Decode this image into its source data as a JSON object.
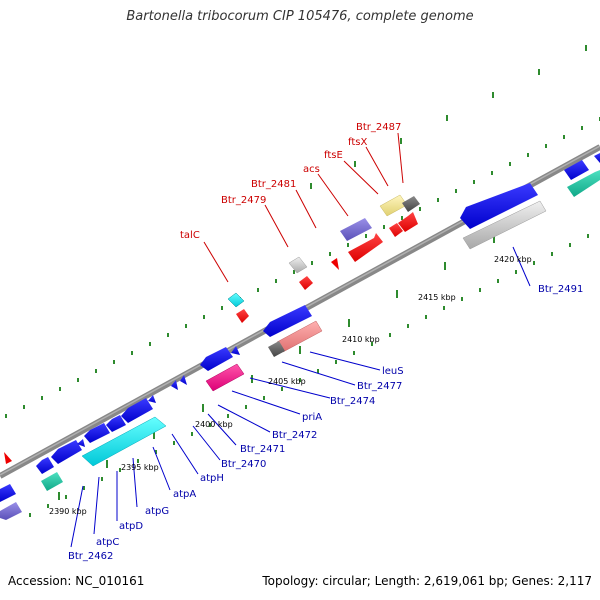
{
  "title": "Bartonella tribocorum CIP 105476, complete genome",
  "footer": {
    "accession": "Accession: NC_010161",
    "info": "Topology: circular; Length: 2,619,061 bp; Genes: 2,117"
  },
  "tick_labels": [
    "2390 kbp",
    "2395 kbp",
    "2400 kbp",
    "2405 kbp",
    "2410 kbp",
    "2415 kbp",
    "2420 kbp"
  ],
  "genes_forward": [
    "talC",
    "Btr_2479",
    "Btr_2481",
    "acs",
    "ftsE",
    "ftsX",
    "Btr_2487"
  ],
  "genes_reverse": [
    "Btr_2462",
    "atpC",
    "atpD",
    "atpG",
    "atpA",
    "atpH",
    "Btr_2470",
    "Btr_2471",
    "Btr_2472",
    "priA",
    "Btr_2474",
    "Btr_2477",
    "leuS",
    "Btr_2491"
  ],
  "colors": {
    "backbone": "#888888",
    "forward_label": "#cc0000",
    "reverse_label": "#0000aa",
    "tick": "#2e8b2e"
  }
}
